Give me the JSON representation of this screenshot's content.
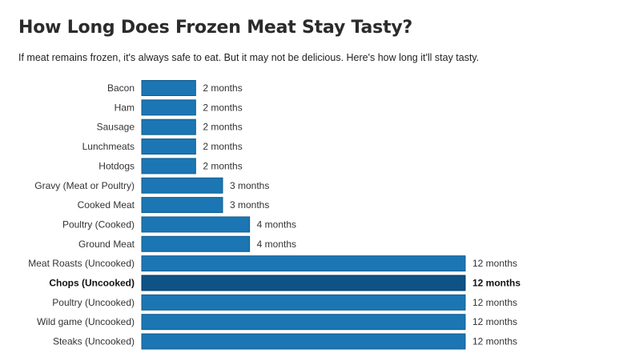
{
  "chart_data": {
    "type": "bar",
    "orientation": "horizontal",
    "title": "How Long Does Frozen Meat Stay Tasty?",
    "subtitle": "If meat remains frozen, it's always safe to eat. But it may not be delicious. Here's how long it'll stay tasty.",
    "xlabel": "",
    "ylabel": "",
    "xlim": [
      0,
      12
    ],
    "grid": false,
    "legend": "none",
    "categories": [
      "Bacon",
      "Ham",
      "Sausage",
      "Lunchmeats",
      "Hotdogs",
      "Gravy (Meat or Poultry)",
      "Cooked Meat",
      "Poultry (Cooked)",
      "Ground Meat",
      "Meat Roasts (Uncooked)",
      "Chops (Uncooked)",
      "Poultry (Uncooked)",
      "Wild game (Uncooked)",
      "Steaks (Uncooked)"
    ],
    "values": [
      2,
      2,
      2,
      2,
      2,
      3,
      3,
      4,
      4,
      12,
      12,
      12,
      12,
      12
    ],
    "value_labels": [
      "2 months",
      "2 months",
      "2 months",
      "2 months",
      "2 months",
      "3 months",
      "3 months",
      "4 months",
      "4 months",
      "12 months",
      "12 months",
      "12 months",
      "12 months",
      "12 months"
    ],
    "highlight_index": 10,
    "colors": {
      "bar": "#1b76b3",
      "bar_border": "#125c8f",
      "bar_highlight": "#0e5286",
      "bar_highlight_border": "#073a60"
    }
  }
}
